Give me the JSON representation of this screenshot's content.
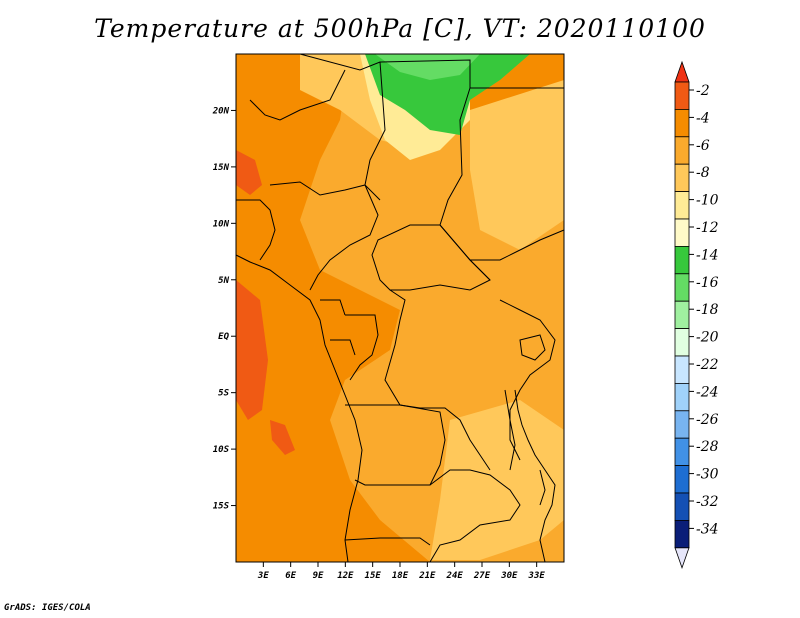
{
  "title": "Temperature at 500hPa [C], VT: 2020110100",
  "credit": "GrADS: IGES/COLA",
  "map": {
    "lon_range": [
      0,
      36
    ],
    "lat_range": [
      -20,
      25
    ],
    "x_ticks": [
      "3E",
      "6E",
      "9E",
      "12E",
      "15E",
      "18E",
      "21E",
      "24E",
      "27E",
      "30E",
      "33E"
    ],
    "y_ticks": [
      "20N",
      "15N",
      "10N",
      "5N",
      "EQ",
      "5S",
      "10S",
      "15S"
    ]
  },
  "colorbar": {
    "labels": [
      "-2",
      "-4",
      "-6",
      "-8",
      "-10",
      "-12",
      "-14",
      "-16",
      "-18",
      "-20",
      "-22",
      "-24",
      "-26",
      "-28",
      "-30",
      "-32",
      "-34"
    ],
    "colors": [
      "#f05a14",
      "#f58c00",
      "#faaa2d",
      "#ffc85a",
      "#ffeb96",
      "#fffac8",
      "#37c83c",
      "#64dc64",
      "#a0f0a0",
      "#e1ffe1",
      "#c8e6ff",
      "#a0d2fa",
      "#78b4f0",
      "#4191e6",
      "#1e6ed2",
      "#1450b4",
      "#0a1e78"
    ],
    "top_arrow_color": "#f03214",
    "bottom_arrow_color": "#e6e6fa"
  },
  "colors": {
    "ocean_orange": "#f58c00",
    "land_light_orange": "#faaa2d",
    "pale_yellow": "#ffc85a",
    "cream": "#ffeb96",
    "green": "#37c83c",
    "red_orange": "#f05a14"
  }
}
